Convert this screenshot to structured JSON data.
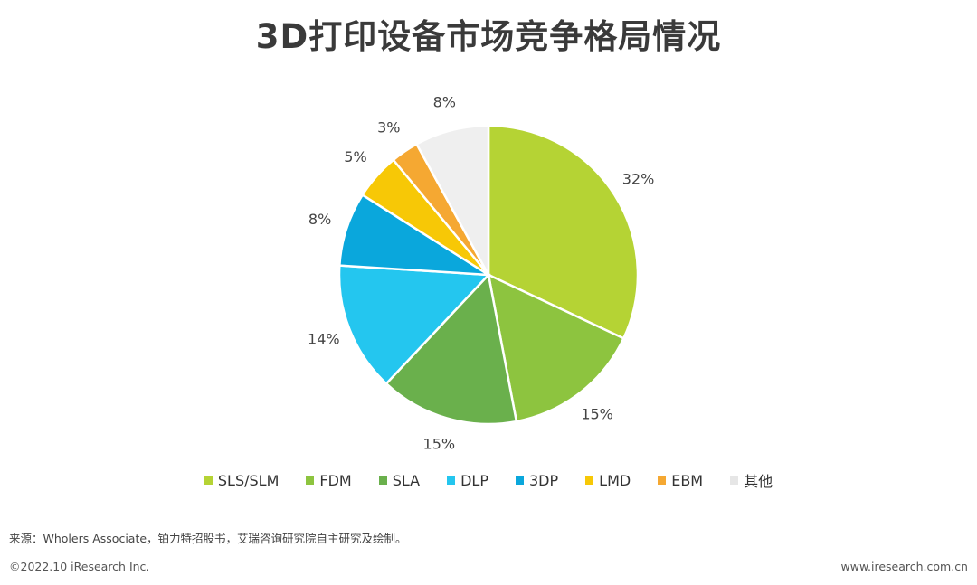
{
  "title": "3D打印设备市场竞争格局情况",
  "chart_data": {
    "type": "pie",
    "title": "3D打印设备市场竞争格局情况",
    "legend_position": "bottom",
    "slices": [
      {
        "name": "SLS/SLM",
        "value": 32,
        "label": "32%",
        "color": "#b5d334"
      },
      {
        "name": "FDM",
        "value": 15,
        "label": "15%",
        "color": "#8dc43f"
      },
      {
        "name": "SLA",
        "value": 15,
        "label": "15%",
        "color": "#6ab04c"
      },
      {
        "name": "DLP",
        "value": 14,
        "label": "14%",
        "color": "#24c6ef"
      },
      {
        "name": "3DP",
        "value": 8,
        "label": "8%",
        "color": "#0aa7dc"
      },
      {
        "name": "LMD",
        "value": 5,
        "label": "5%",
        "color": "#f7c806"
      },
      {
        "name": "EBM",
        "value": 3,
        "label": "3%",
        "color": "#f5a832"
      },
      {
        "name": "其他",
        "value": 8,
        "label": "8%",
        "color": "#efefef"
      }
    ]
  },
  "source": "来源：Wholers Associate，铂力特招股书，艾瑞咨询研究院自主研究及绘制。",
  "footer": {
    "copyright": "©2022.10 iResearch Inc.",
    "website": "www.iresearch.com.cn"
  }
}
